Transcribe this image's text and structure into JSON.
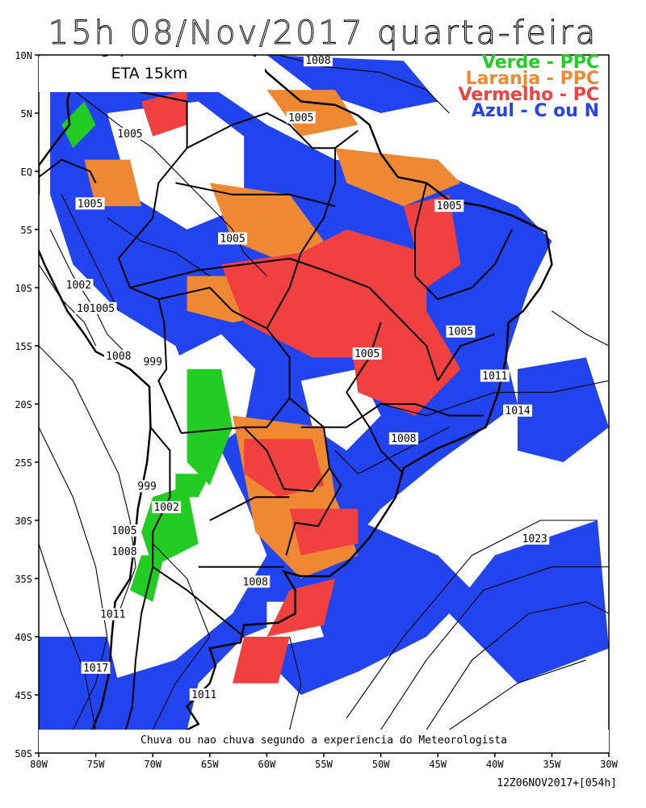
{
  "title": "15h 08/Nov/2017 quarta-feira",
  "model": "ETA 15km",
  "legend": [
    {
      "label": "Verde - PPC",
      "color": "#22cc22"
    },
    {
      "label": "Laranja - PPC",
      "color": "#ee8833"
    },
    {
      "label": "Vermelho - PC",
      "color": "#f04040"
    },
    {
      "label": "Azul - C ou N",
      "color": "#2244ee"
    }
  ],
  "caption": "Chuva ou nao chuva segundo a experiencia do Meteorologista",
  "footer": "12Z06NOV2017+[054h]",
  "lat_ticks": [
    "10N",
    "5N",
    "EQ",
    "5S",
    "10S",
    "15S",
    "20S",
    "25S",
    "30S",
    "35S",
    "40S",
    "45S",
    "50S"
  ],
  "lon_ticks": [
    "80W",
    "75W",
    "70W",
    "65W",
    "60W",
    "55W",
    "50W",
    "45W",
    "40W",
    "35W",
    "30W"
  ],
  "pressure_labels": [
    {
      "text": "1008",
      "lon": -55.5,
      "lat": 9.5
    },
    {
      "text": "1005",
      "lon": -57.0,
      "lat": 4.6
    },
    {
      "text": "1005",
      "lon": -72.0,
      "lat": 3.2
    },
    {
      "text": "1005",
      "lon": -75.5,
      "lat": -2.8
    },
    {
      "text": "1005",
      "lon": -44.0,
      "lat": -3.0
    },
    {
      "text": "1005",
      "lon": -63.0,
      "lat": -5.8
    },
    {
      "text": "1002",
      "lon": -76.5,
      "lat": -9.8
    },
    {
      "text": "101005",
      "lon": -75.0,
      "lat": -11.8
    },
    {
      "text": "1008",
      "lon": -73.0,
      "lat": -15.9
    },
    {
      "text": "999",
      "lon": -70.0,
      "lat": -16.4
    },
    {
      "text": "1005",
      "lon": -43.0,
      "lat": -13.8
    },
    {
      "text": "1005",
      "lon": -51.2,
      "lat": -15.7
    },
    {
      "text": "1011",
      "lon": -40.0,
      "lat": -17.6
    },
    {
      "text": "1014",
      "lon": -38.0,
      "lat": -20.6
    },
    {
      "text": "1008",
      "lon": -48.0,
      "lat": -23.0
    },
    {
      "text": "999",
      "lon": -70.5,
      "lat": -27.1
    },
    {
      "text": "1002",
      "lon": -68.8,
      "lat": -28.9
    },
    {
      "text": "1005",
      "lon": -72.5,
      "lat": -30.9
    },
    {
      "text": "1008",
      "lon": -72.5,
      "lat": -32.7
    },
    {
      "text": "1023",
      "lon": -36.5,
      "lat": -31.6
    },
    {
      "text": "1008",
      "lon": -61.0,
      "lat": -35.3
    },
    {
      "text": "1011",
      "lon": -73.5,
      "lat": -38.1
    },
    {
      "text": "1017",
      "lon": -75.0,
      "lat": -42.7
    },
    {
      "text": "1011",
      "lon": -65.5,
      "lat": -45.0
    }
  ]
}
